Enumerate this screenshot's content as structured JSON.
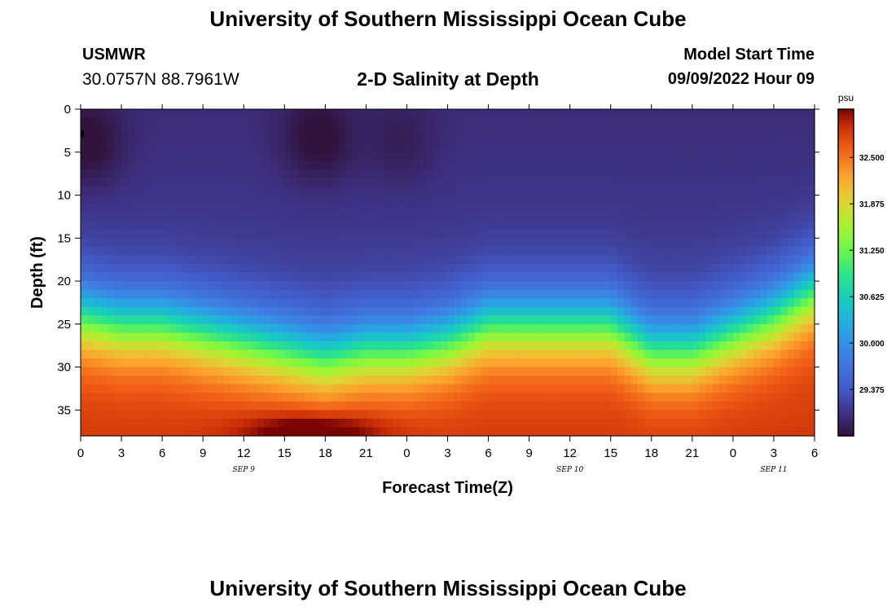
{
  "header": {
    "title": "University of Southern Mississippi Ocean Cube",
    "station": "USMWR",
    "coordinates": "30.0757N  88.7961W",
    "model_start_label": "Model Start Time",
    "model_start_value": "09/09/2022 Hour 09"
  },
  "footer": {
    "title": "University of Southern Mississippi Ocean Cube"
  },
  "chart_data": {
    "type": "heatmap",
    "title": "2-D Salinity at Depth",
    "xlabel": "Forecast Time(Z)",
    "ylabel": "Depth (ft)",
    "x_tick_labels": [
      "0",
      "3",
      "6",
      "9",
      "12",
      "15",
      "18",
      "21",
      "0",
      "3",
      "6",
      "9",
      "12",
      "15",
      "18",
      "21",
      "0",
      "3",
      "6"
    ],
    "x_range_hours": [
      0,
      54
    ],
    "date_labels": [
      {
        "label": "SEP 9",
        "hour": 12
      },
      {
        "label": "SEP 10",
        "hour": 36
      },
      {
        "label": "SEP 11",
        "hour": 51
      }
    ],
    "y_tick_labels": [
      "0",
      "5",
      "10",
      "15",
      "20",
      "25",
      "30",
      "35"
    ],
    "y_ticks": [
      0,
      5,
      10,
      15,
      20,
      25,
      30,
      35
    ],
    "ylim": [
      0,
      38
    ],
    "y_inverted": true,
    "colorbar": {
      "unit": "psu",
      "range": [
        28.75,
        33.15
      ],
      "tick_values": [
        29.375,
        30.0,
        30.625,
        31.25,
        31.875,
        32.5
      ],
      "tick_labels": [
        "29.375",
        "30.000",
        "30.625",
        "31.250",
        "31.875",
        "32.500"
      ]
    },
    "halocline_depth_ft": [
      {
        "hour": 0,
        "depth": 24
      },
      {
        "hour": 3,
        "depth": 25
      },
      {
        "hour": 6,
        "depth": 25
      },
      {
        "hour": 9,
        "depth": 26
      },
      {
        "hour": 12,
        "depth": 27
      },
      {
        "hour": 15,
        "depth": 28
      },
      {
        "hour": 18,
        "depth": 29
      },
      {
        "hour": 21,
        "depth": 28
      },
      {
        "hour": 24,
        "depth": 28
      },
      {
        "hour": 27,
        "depth": 27
      },
      {
        "hour": 30,
        "depth": 25
      },
      {
        "hour": 33,
        "depth": 25
      },
      {
        "hour": 36,
        "depth": 25
      },
      {
        "hour": 39,
        "depth": 25
      },
      {
        "hour": 42,
        "depth": 28
      },
      {
        "hour": 45,
        "depth": 28
      },
      {
        "hour": 48,
        "depth": 26
      },
      {
        "hour": 51,
        "depth": 24
      },
      {
        "hour": 54,
        "depth": 21
      }
    ],
    "surface_salinity_psu": 29.0,
    "bottom_salinity_psu": 32.6,
    "fresh_pockets": [
      {
        "hour": 0.5,
        "depth": 4,
        "psu": 28.8
      },
      {
        "hour": 17.5,
        "depth": 3.5,
        "psu": 28.8
      },
      {
        "hour": 23.5,
        "depth": 4,
        "psu": 28.9
      }
    ],
    "salty_core": {
      "hour": 17,
      "depth": 37.5,
      "psu": 33.1
    }
  }
}
